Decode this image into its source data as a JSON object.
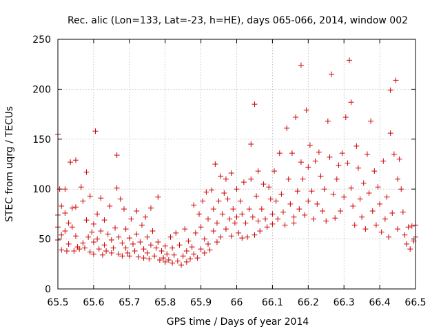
{
  "chart_data": {
    "type": "scatter",
    "title": "Rec. alic (Lon=133, Lat=-23, h=HE), days 065-066, 2014, window 002",
    "xlabel": "GPS time / Days of year 2014",
    "ylabel": "STEC from uqrg / TECUs",
    "xlim": [
      65.5,
      66.5
    ],
    "ylim": [
      0,
      250
    ],
    "x_ticks": [
      65.5,
      65.6,
      65.7,
      65.8,
      65.9,
      66.0,
      66.1,
      66.2,
      66.3,
      66.4,
      66.5
    ],
    "x_tick_labels": [
      "65.5",
      "65.6",
      "65.7",
      "65.8",
      "65.9",
      "66",
      "66.1",
      "66.2",
      "66.3",
      "66.4",
      "66.5"
    ],
    "y_ticks": [
      0,
      50,
      100,
      150,
      200,
      250
    ],
    "y_tick_labels": [
      "0",
      "50",
      "100",
      "150",
      "200",
      "250"
    ],
    "grid": true,
    "marker": "+",
    "series": [
      {
        "name": "STEC",
        "color": "#cc0000",
        "points": [
          [
            65.5,
            155
          ],
          [
            65.5,
            74
          ],
          [
            65.5,
            62
          ],
          [
            65.5,
            49
          ],
          [
            65.505,
            100
          ],
          [
            65.51,
            83
          ],
          [
            65.51,
            54
          ],
          [
            65.51,
            39
          ],
          [
            65.52,
            100
          ],
          [
            65.52,
            76
          ],
          [
            65.52,
            58
          ],
          [
            65.525,
            38
          ],
          [
            65.53,
            66
          ],
          [
            65.53,
            45
          ],
          [
            65.535,
            127
          ],
          [
            65.54,
            81
          ],
          [
            65.54,
            62
          ],
          [
            65.545,
            38
          ],
          [
            65.55,
            129
          ],
          [
            65.55,
            82
          ],
          [
            65.55,
            53
          ],
          [
            65.555,
            42
          ],
          [
            65.56,
            40
          ],
          [
            65.565,
            102
          ],
          [
            65.57,
            88
          ],
          [
            65.57,
            46
          ],
          [
            65.575,
            41
          ],
          [
            65.58,
            117
          ],
          [
            65.58,
            69
          ],
          [
            65.585,
            52
          ],
          [
            65.59,
            93
          ],
          [
            65.59,
            37
          ],
          [
            65.595,
            57
          ],
          [
            65.6,
            65
          ],
          [
            65.6,
            47
          ],
          [
            65.6,
            35
          ],
          [
            65.605,
            158
          ],
          [
            65.61,
            75
          ],
          [
            65.61,
            50
          ],
          [
            65.615,
            40
          ],
          [
            65.62,
            91
          ],
          [
            65.62,
            58
          ],
          [
            65.625,
            34
          ],
          [
            65.63,
            69
          ],
          [
            65.63,
            44
          ],
          [
            65.635,
            38
          ],
          [
            65.64,
            55
          ],
          [
            65.645,
            83
          ],
          [
            65.65,
            49
          ],
          [
            65.65,
            36
          ],
          [
            65.655,
            41
          ],
          [
            65.66,
            61
          ],
          [
            65.665,
            134
          ],
          [
            65.665,
            101
          ],
          [
            65.67,
            52
          ],
          [
            65.67,
            35
          ],
          [
            65.675,
            90
          ],
          [
            65.68,
            46
          ],
          [
            65.68,
            33
          ],
          [
            65.685,
            80
          ],
          [
            65.69,
            60
          ],
          [
            65.69,
            41
          ],
          [
            65.695,
            36
          ],
          [
            65.7,
            51
          ],
          [
            65.7,
            33
          ],
          [
            65.705,
            70
          ],
          [
            65.71,
            45
          ],
          [
            65.715,
            38
          ],
          [
            65.72,
            78
          ],
          [
            65.72,
            55
          ],
          [
            65.725,
            32
          ],
          [
            65.73,
            47
          ],
          [
            65.735,
            64
          ],
          [
            65.74,
            40
          ],
          [
            65.74,
            31
          ],
          [
            65.745,
            72
          ],
          [
            65.75,
            52
          ],
          [
            65.75,
            36
          ],
          [
            65.755,
            30
          ],
          [
            65.76,
            81
          ],
          [
            65.76,
            44
          ],
          [
            65.765,
            58
          ],
          [
            65.77,
            33
          ],
          [
            65.775,
            41
          ],
          [
            65.78,
            92
          ],
          [
            65.78,
            47
          ],
          [
            65.785,
            29
          ],
          [
            65.79,
            38
          ],
          [
            65.795,
            31
          ],
          [
            65.8,
            43
          ],
          [
            65.8,
            27
          ],
          [
            65.805,
            35
          ],
          [
            65.81,
            29
          ],
          [
            65.815,
            52
          ],
          [
            65.82,
            41
          ],
          [
            65.82,
            26
          ],
          [
            65.825,
            34
          ],
          [
            65.83,
            56
          ],
          [
            65.835,
            28
          ],
          [
            65.84,
            44
          ],
          [
            65.845,
            24
          ],
          [
            65.85,
            33
          ],
          [
            65.855,
            60
          ],
          [
            65.86,
            38
          ],
          [
            65.86,
            27
          ],
          [
            65.865,
            48
          ],
          [
            65.87,
            30
          ],
          [
            65.875,
            42
          ],
          [
            65.88,
            84
          ],
          [
            65.88,
            35
          ],
          [
            65.885,
            56
          ],
          [
            65.89,
            31
          ],
          [
            65.895,
            75
          ],
          [
            65.9,
            62
          ],
          [
            65.9,
            40
          ],
          [
            65.905,
            88
          ],
          [
            65.91,
            50
          ],
          [
            65.91,
            36
          ],
          [
            65.915,
            97
          ],
          [
            65.92,
            70
          ],
          [
            65.92,
            45
          ],
          [
            65.925,
            39
          ],
          [
            65.93,
            99
          ],
          [
            65.935,
            80
          ],
          [
            65.935,
            58
          ],
          [
            65.94,
            125
          ],
          [
            65.945,
            66
          ],
          [
            65.945,
            47
          ],
          [
            65.95,
            88
          ],
          [
            65.955,
            113
          ],
          [
            65.955,
            52
          ],
          [
            65.96,
            75
          ],
          [
            65.965,
            96
          ],
          [
            65.97,
            110
          ],
          [
            65.97,
            60
          ],
          [
            65.975,
            90
          ],
          [
            65.98,
            70
          ],
          [
            65.985,
            116
          ],
          [
            65.985,
            53
          ],
          [
            65.99,
            80
          ],
          [
            65.995,
            66
          ],
          [
            66.0,
            100
          ],
          [
            66.0,
            72
          ],
          [
            66.005,
            56
          ],
          [
            66.01,
            88
          ],
          [
            66.015,
            75
          ],
          [
            66.015,
            51
          ],
          [
            66.02,
            107
          ],
          [
            66.025,
            66
          ],
          [
            66.03,
            52
          ],
          [
            66.035,
            80
          ],
          [
            66.04,
            145
          ],
          [
            66.04,
            110
          ],
          [
            66.045,
            72
          ],
          [
            66.05,
            185
          ],
          [
            66.05,
            54
          ],
          [
            66.055,
            93
          ],
          [
            66.06,
            118
          ],
          [
            66.06,
            68
          ],
          [
            66.065,
            58
          ],
          [
            66.07,
            80
          ],
          [
            66.075,
            105
          ],
          [
            66.08,
            70
          ],
          [
            66.085,
            62
          ],
          [
            66.09,
            102
          ],
          [
            66.095,
            90
          ],
          [
            66.1,
            75
          ],
          [
            66.1,
            65
          ],
          [
            66.105,
            118
          ],
          [
            66.11,
            88
          ],
          [
            66.115,
            70
          ],
          [
            66.12,
            136
          ],
          [
            66.125,
            95
          ],
          [
            66.13,
            77
          ],
          [
            66.135,
            64
          ],
          [
            66.14,
            161
          ],
          [
            66.145,
            110
          ],
          [
            66.15,
            85
          ],
          [
            66.155,
            136
          ],
          [
            66.16,
            72
          ],
          [
            66.16,
            66
          ],
          [
            66.165,
            172
          ],
          [
            66.17,
            98
          ],
          [
            66.175,
            80
          ],
          [
            66.18,
            224
          ],
          [
            66.18,
            127
          ],
          [
            66.185,
            110
          ],
          [
            66.19,
            74
          ],
          [
            66.195,
            179
          ],
          [
            66.2,
            122
          ],
          [
            66.2,
            88
          ],
          [
            66.205,
            144
          ],
          [
            66.21,
            98
          ],
          [
            66.215,
            70
          ],
          [
            66.22,
            128
          ],
          [
            66.225,
            85
          ],
          [
            66.23,
            137
          ],
          [
            66.235,
            113
          ],
          [
            66.24,
            78
          ],
          [
            66.245,
            100
          ],
          [
            66.25,
            68
          ],
          [
            66.255,
            168
          ],
          [
            66.26,
            132
          ],
          [
            66.265,
            215
          ],
          [
            66.27,
            95
          ],
          [
            66.275,
            71
          ],
          [
            66.28,
            110
          ],
          [
            66.285,
            124
          ],
          [
            66.29,
            78
          ],
          [
            66.295,
            136
          ],
          [
            66.3,
            92
          ],
          [
            66.305,
            172
          ],
          [
            66.31,
            126
          ],
          [
            66.315,
            229
          ],
          [
            66.32,
            187
          ],
          [
            66.32,
            101
          ],
          [
            66.325,
            83
          ],
          [
            66.33,
            64
          ],
          [
            66.335,
            143
          ],
          [
            66.34,
            121
          ],
          [
            66.345,
            90
          ],
          [
            66.35,
            72
          ],
          [
            66.355,
            106
          ],
          [
            66.36,
            60
          ],
          [
            66.365,
            135
          ],
          [
            66.37,
            96
          ],
          [
            66.375,
            168
          ],
          [
            66.38,
            78
          ],
          [
            66.385,
            118
          ],
          [
            66.39,
            64
          ],
          [
            66.395,
            102
          ],
          [
            66.4,
            85
          ],
          [
            66.405,
            57
          ],
          [
            66.41,
            128
          ],
          [
            66.415,
            70
          ],
          [
            66.42,
            92
          ],
          [
            66.425,
            52
          ],
          [
            66.43,
            199
          ],
          [
            66.43,
            156
          ],
          [
            66.435,
            76
          ],
          [
            66.44,
            135
          ],
          [
            66.445,
            209
          ],
          [
            66.45,
            110
          ],
          [
            66.45,
            60
          ],
          [
            66.455,
            130
          ],
          [
            66.46,
            100
          ],
          [
            66.465,
            77
          ],
          [
            66.47,
            54
          ],
          [
            66.475,
            45
          ],
          [
            66.48,
            62
          ],
          [
            66.485,
            40
          ],
          [
            66.49,
            63
          ],
          [
            66.495,
            48
          ],
          [
            66.5,
            64
          ],
          [
            66.5,
            52
          ]
        ]
      }
    ]
  }
}
